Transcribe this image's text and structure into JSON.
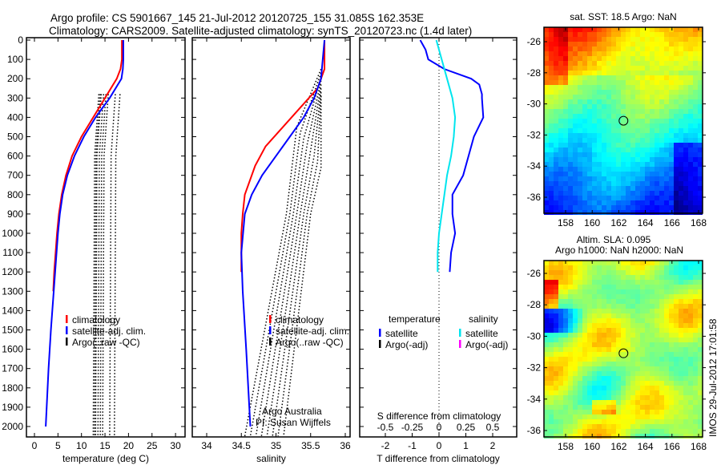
{
  "header": {
    "line1": "Argo profile: CS 5901667_145 21-Jul-2012 20120725_155 31.085S 162.353E",
    "line2": "Climatology: CARS2009. Satellite-adjusted climatology: synTS_20120723.nc (1.4d later)"
  },
  "colors": {
    "climatology": "#ff0000",
    "satellite": "#0000ff",
    "argo": "#000000",
    "sal_satellite": "#00e5ee",
    "sal_argo": "#ff00ff"
  },
  "chart_data": [
    {
      "type": "line",
      "xlabel": "temperature (deg C)",
      "ylabel": "",
      "xlim": [
        -2,
        32
      ],
      "ylim": [
        2050,
        0
      ],
      "xticks": [
        "0",
        "5",
        "10",
        "15",
        "20",
        "25",
        "30"
      ],
      "xtick_values": [
        0,
        5,
        10,
        15,
        20,
        25,
        30
      ],
      "yticks": [
        "0",
        "100",
        "200",
        "300",
        "400",
        "500",
        "600",
        "700",
        "800",
        "900",
        "1000",
        "1100",
        "1200",
        "1300",
        "1400",
        "1500",
        "1600",
        "1700",
        "1800",
        "1900",
        "2000"
      ],
      "legend": [
        "climatology",
        "satellite-adj. clim.",
        "Argo(..raw -QC)"
      ],
      "series": [
        {
          "name": "climatology",
          "depth": [
            0,
            100,
            150,
            200,
            300,
            400,
            500,
            600,
            700,
            800,
            900,
            1000,
            1100,
            1200,
            1300
          ],
          "values": [
            18.6,
            18.6,
            18.3,
            17.5,
            15,
            12.5,
            10,
            8,
            6.7,
            5.8,
            5.2,
            4.8,
            4.5,
            4.2,
            4.0
          ]
        },
        {
          "name": "satellite-adj. clim.",
          "depth": [
            0,
            100,
            150,
            200,
            300,
            400,
            500,
            600,
            700,
            800,
            900,
            1000,
            1100,
            1200,
            1300,
            1500,
            1700,
            1900,
            2000
          ],
          "values": [
            18.9,
            18.9,
            18.8,
            18.5,
            16,
            13,
            10.5,
            8.5,
            7,
            6,
            5.4,
            5,
            4.7,
            4.4,
            4.1,
            3.5,
            3.0,
            2.6,
            2.4
          ]
        },
        {
          "name": "Argo(..raw -QC)",
          "depth_range": [
            270,
            2050
          ],
          "x_values": [
            12.5,
            13,
            13.5,
            14,
            14.5,
            16,
            17
          ]
        }
      ]
    },
    {
      "type": "line",
      "xlabel": "salinity",
      "xlim": [
        33.8,
        36.1
      ],
      "ylim": [
        2050,
        0
      ],
      "xticks": [
        "34",
        "34.5",
        "35",
        "35.5",
        "36"
      ],
      "xtick_values": [
        34,
        34.5,
        35,
        35.5,
        36
      ],
      "legend": [
        "climatology",
        "satellite-adj. clim.",
        "Argo(..raw -QC)"
      ],
      "annotation": [
        "Argo Australia",
        "PI: Susan Wijffels"
      ],
      "series": [
        {
          "name": "climatology",
          "depth": [
            0,
            150,
            250,
            350,
            450,
            550,
            650,
            800,
            900,
            1000,
            1200
          ],
          "values": [
            35.7,
            35.7,
            35.6,
            35.35,
            35.1,
            34.85,
            34.7,
            34.55,
            34.52,
            34.5,
            34.5
          ]
        },
        {
          "name": "satellite-adj. clim.",
          "depth": [
            0,
            200,
            300,
            400,
            500,
            600,
            700,
            800,
            900,
            1100,
            1300,
            1600,
            2000
          ],
          "values": [
            35.7,
            35.65,
            35.55,
            35.4,
            35.2,
            35.0,
            34.8,
            34.65,
            34.55,
            34.5,
            34.52,
            34.57,
            34.63
          ]
        }
      ]
    },
    {
      "type": "line",
      "xlabel": "T difference from climatology",
      "xlabel2": "S difference from climatology",
      "xlim": [
        -3,
        3
      ],
      "ylim": [
        2050,
        0
      ],
      "xticks": [
        "-2",
        "-1",
        "0",
        "1",
        "2"
      ],
      "xtick_values": [
        -2,
        -1,
        0,
        1,
        2
      ],
      "xticks2": [
        "-0.5",
        "-0.25",
        "0",
        "0.25",
        "0.5"
      ],
      "xtick2_values": [
        -0.5,
        -0.25,
        0,
        0.25,
        0.5
      ],
      "legend_temperature": {
        "title": "temperature",
        "items": [
          "satellite",
          "Argo(-adj)"
        ]
      },
      "legend_salinity": {
        "title": "salinity",
        "items": [
          "satellite",
          "Argo(-adj)"
        ]
      },
      "series": [
        {
          "name": "T satellite",
          "depth": [
            0,
            50,
            100,
            150,
            200,
            230,
            280,
            300,
            400,
            500,
            600,
            700,
            800,
            900,
            1000,
            1100,
            1200
          ],
          "values": [
            -0.7,
            -0.5,
            -0.4,
            0.2,
            1.2,
            1.5,
            1.6,
            1.6,
            1.65,
            1.3,
            1.1,
            0.9,
            0.5,
            0.5,
            0.6,
            0.45,
            0.4
          ]
        },
        {
          "name": "S satellite (T units)",
          "depth": [
            0,
            100,
            200,
            300,
            400,
            500,
            600,
            700,
            800,
            900,
            1000,
            1100,
            1200
          ],
          "values": [
            -0.1,
            0.1,
            0.3,
            0.5,
            0.6,
            0.55,
            0.45,
            0.3,
            0.2,
            0.1,
            0.0,
            -0.05,
            -0.05
          ]
        }
      ]
    },
    {
      "type": "heatmap",
      "title": "sat. SST: 18.5 Argo: NaN",
      "xticks": [
        "158",
        "160",
        "162",
        "164",
        "166",
        "168"
      ],
      "xtick_values": [
        158,
        160,
        162,
        164,
        166,
        168
      ],
      "yticks": [
        "-26",
        "-28",
        "-30",
        "-32",
        "-34",
        "-36"
      ],
      "ytick_values": [
        -26,
        -28,
        -30,
        -32,
        -34,
        -36
      ],
      "marker": {
        "lon": 162.353,
        "lat": -31.085
      }
    },
    {
      "type": "heatmap",
      "title1": "Altim. SLA: 0.095",
      "title2": "Argo h1000: NaN h2000: NaN",
      "xticks": [
        "158",
        "160",
        "162",
        "164",
        "166",
        "168"
      ],
      "xtick_values": [
        158,
        160,
        162,
        164,
        166,
        168
      ],
      "yticks": [
        "-26",
        "-28",
        "-30",
        "-32",
        "-34",
        "-36"
      ],
      "ytick_values": [
        -26,
        -28,
        -30,
        -32,
        -34,
        -36
      ],
      "marker": {
        "lon": 162.353,
        "lat": -31.085
      },
      "side_label": "IMOS 29-Jul-2012 17:01:58"
    }
  ]
}
